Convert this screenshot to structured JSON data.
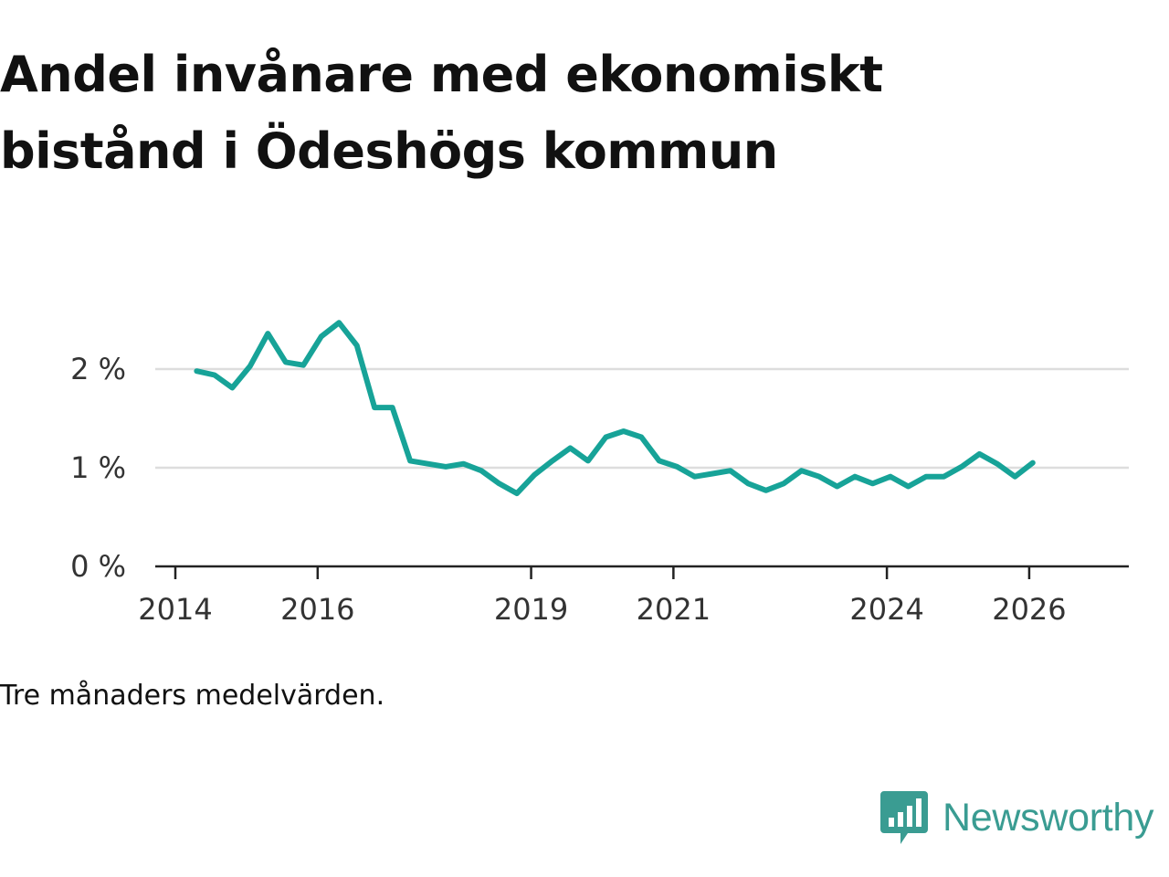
{
  "title": "Andel invånare med ekonomiskt bistånd i Ödeshögs kommun",
  "caption": "Tre månaders medelvärden.",
  "brand": {
    "name": "Newsworthy",
    "icon": "newsworthy-logo-icon",
    "color": "#3a9c92"
  },
  "chart_data": {
    "type": "line",
    "title": "Andel invånare med ekonomiskt bistånd i Ödeshögs kommun",
    "xlabel": "",
    "ylabel": "",
    "xlim": [
      2014,
      2027.4
    ],
    "ylim": [
      0,
      2.5
    ],
    "x_ticks": [
      {
        "value": 2014,
        "label": "2014"
      },
      {
        "value": 2016,
        "label": "2016"
      },
      {
        "value": 2019,
        "label": "2019"
      },
      {
        "value": 2021,
        "label": "2021"
      },
      {
        "value": 2024,
        "label": "2024"
      },
      {
        "value": 2026,
        "label": "2026"
      }
    ],
    "y_ticks": [
      {
        "value": 0,
        "label": "0 %"
      },
      {
        "value": 1,
        "label": "1 %"
      },
      {
        "value": 2,
        "label": "2 %"
      }
    ],
    "gridlines": "horizontal",
    "line_color": "#17a398",
    "series": [
      {
        "name": "Andel",
        "x": [
          2014.3,
          2014.55,
          2014.8,
          2015.05,
          2015.3,
          2015.55,
          2015.8,
          2016.05,
          2016.3,
          2016.55,
          2016.8,
          2017.05,
          2017.3,
          2017.55,
          2017.8,
          2018.05,
          2018.3,
          2018.55,
          2018.8,
          2019.05,
          2019.3,
          2019.55,
          2019.8,
          2020.05,
          2020.3,
          2020.55,
          2020.8,
          2021.05,
          2021.3,
          2021.55,
          2021.8,
          2022.05,
          2022.3,
          2022.55,
          2022.8,
          2023.05,
          2023.3,
          2023.55,
          2023.8,
          2024.05,
          2024.3,
          2024.55,
          2024.8,
          2025.05,
          2025.3,
          2025.55,
          2025.8,
          2026.05
        ],
        "values": [
          1.98,
          1.94,
          1.81,
          2.03,
          2.36,
          2.07,
          2.04,
          2.33,
          2.47,
          2.24,
          1.61,
          1.61,
          1.07,
          1.04,
          1.01,
          1.04,
          0.97,
          0.84,
          0.74,
          0.93,
          1.07,
          1.2,
          1.07,
          1.31,
          1.37,
          1.31,
          1.07,
          1.01,
          0.91,
          0.94,
          0.97,
          0.84,
          0.77,
          0.84,
          0.97,
          0.91,
          0.81,
          0.91,
          0.84,
          0.91,
          0.81,
          0.91,
          0.91,
          1.01,
          1.14,
          1.04,
          0.91,
          1.05
        ]
      }
    ]
  }
}
